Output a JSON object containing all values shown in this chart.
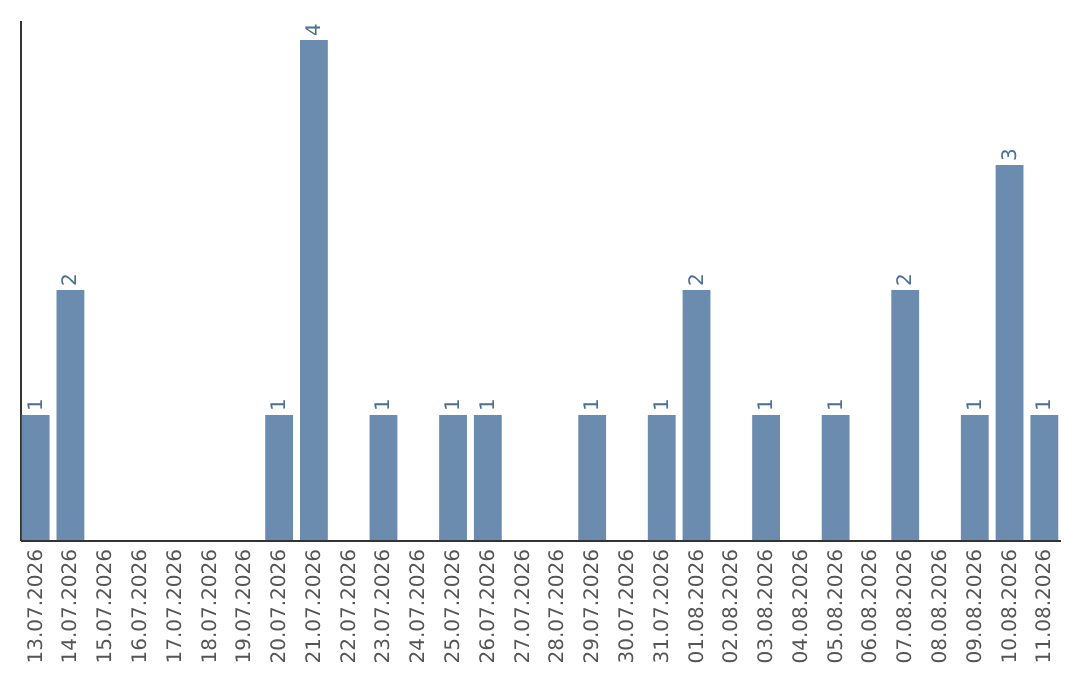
{
  "chart_data": {
    "type": "bar",
    "categories": [
      "13.07.2026",
      "14.07.2026",
      "15.07.2026",
      "16.07.2026",
      "17.07.2026",
      "18.07.2026",
      "19.07.2026",
      "20.07.2026",
      "21.07.2026",
      "22.07.2026",
      "23.07.2026",
      "24.07.2026",
      "25.07.2026",
      "26.07.2026",
      "27.07.2026",
      "28.07.2026",
      "29.07.2026",
      "30.07.2026",
      "31.07.2026",
      "01.08.2026",
      "02.08.2026",
      "03.08.2026",
      "04.08.2026",
      "05.08.2026",
      "06.08.2026",
      "07.08.2026",
      "08.08.2026",
      "09.08.2026",
      "10.08.2026",
      "11.08.2026"
    ],
    "values": [
      1,
      2,
      0,
      0,
      0,
      0,
      0,
      1,
      4,
      0,
      1,
      0,
      1,
      1,
      0,
      0,
      1,
      0,
      1,
      2,
      0,
      1,
      0,
      1,
      0,
      2,
      0,
      1,
      3,
      1
    ],
    "value_labels": [
      "1",
      "2",
      null,
      null,
      null,
      null,
      null,
      "1",
      "4",
      null,
      "1",
      null,
      "1",
      "1",
      null,
      null,
      "1",
      null,
      "1",
      "2",
      null,
      "1",
      null,
      "1",
      null,
      "2",
      null,
      "1",
      "3",
      "1"
    ],
    "color": "#6b8cae",
    "ylim": [
      0,
      4.16
    ],
    "tick_labels": "x"
  }
}
